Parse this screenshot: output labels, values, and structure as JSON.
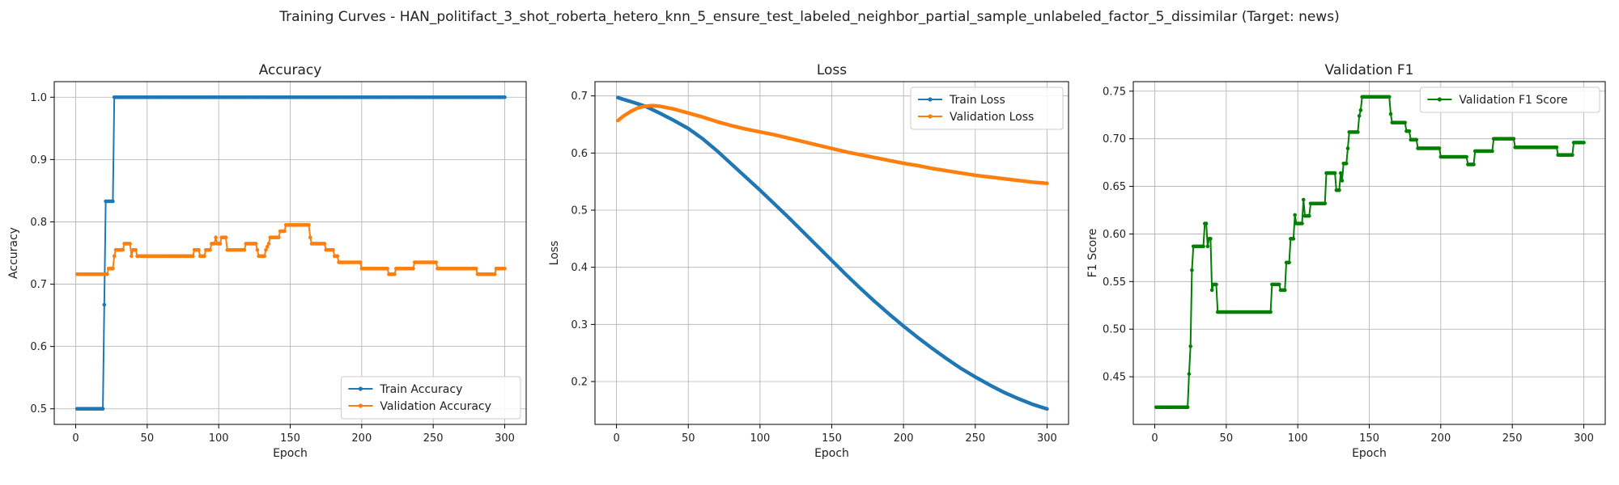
{
  "suptitle": "Training Curves - HAN_politifact_3_shot_roberta_hetero_knn_5_ensure_test_labeled_neighbor_partial_sample_unlabeled_factor_5_dissimilar (Target: news)",
  "colors": {
    "blue": "#1f77b4",
    "orange": "#ff7f0e",
    "green": "#008000"
  },
  "chart_data": [
    {
      "type": "line",
      "title": "Accuracy",
      "xlabel": "Epoch",
      "ylabel": "Accuracy",
      "xlim": [
        -15,
        315
      ],
      "ylim": [
        0.475,
        1.025
      ],
      "xticks": [
        0,
        50,
        100,
        150,
        200,
        250,
        300
      ],
      "yticks": [
        0.5,
        0.6,
        0.7,
        0.8,
        0.9,
        1.0
      ],
      "ytick_labels": [
        "0.5",
        "0.6",
        "0.7",
        "0.8",
        "0.9",
        "1.0"
      ],
      "grid": true,
      "legend_position": "lower-right",
      "series": [
        {
          "name": "Train Accuracy",
          "color": "#1f77b4",
          "points": [
            [
              1,
              0.5
            ],
            [
              19,
              0.5
            ],
            [
              20,
              0.667
            ],
            [
              21,
              0.833
            ],
            [
              26,
              0.833
            ],
            [
              27,
              1.0
            ],
            [
              300,
              1.0
            ]
          ]
        },
        {
          "name": "Validation Accuracy",
          "color": "#ff7f0e",
          "points": [
            [
              1,
              0.716
            ],
            [
              22,
              0.716
            ],
            [
              23,
              0.725
            ],
            [
              26,
              0.725
            ],
            [
              27,
              0.745
            ],
            [
              28,
              0.755
            ],
            [
              33,
              0.755
            ],
            [
              34,
              0.765
            ],
            [
              38,
              0.765
            ],
            [
              39,
              0.745
            ],
            [
              40,
              0.755
            ],
            [
              42,
              0.755
            ],
            [
              43,
              0.745
            ],
            [
              82,
              0.745
            ],
            [
              83,
              0.755
            ],
            [
              86,
              0.755
            ],
            [
              87,
              0.745
            ],
            [
              90,
              0.745
            ],
            [
              91,
              0.755
            ],
            [
              94,
              0.755
            ],
            [
              95,
              0.765
            ],
            [
              97,
              0.765
            ],
            [
              98,
              0.775
            ],
            [
              99,
              0.765
            ],
            [
              101,
              0.765
            ],
            [
              102,
              0.775
            ],
            [
              105,
              0.775
            ],
            [
              106,
              0.755
            ],
            [
              118,
              0.755
            ],
            [
              119,
              0.765
            ],
            [
              126,
              0.765
            ],
            [
              127,
              0.755
            ],
            [
              128,
              0.745
            ],
            [
              132,
              0.745
            ],
            [
              133,
              0.755
            ],
            [
              135,
              0.765
            ],
            [
              136,
              0.775
            ],
            [
              142,
              0.775
            ],
            [
              143,
              0.785
            ],
            [
              146,
              0.785
            ],
            [
              147,
              0.795
            ],
            [
              163,
              0.795
            ],
            [
              164,
              0.775
            ],
            [
              165,
              0.765
            ],
            [
              174,
              0.765
            ],
            [
              175,
              0.755
            ],
            [
              180,
              0.755
            ],
            [
              181,
              0.745
            ],
            [
              183,
              0.745
            ],
            [
              184,
              0.735
            ],
            [
              199,
              0.735
            ],
            [
              200,
              0.725
            ],
            [
              218,
              0.725
            ],
            [
              219,
              0.716
            ],
            [
              223,
              0.716
            ],
            [
              224,
              0.725
            ],
            [
              236,
              0.725
            ],
            [
              237,
              0.735
            ],
            [
              252,
              0.735
            ],
            [
              253,
              0.725
            ],
            [
              280,
              0.725
            ],
            [
              281,
              0.716
            ],
            [
              293,
              0.716
            ],
            [
              294,
              0.725
            ],
            [
              300,
              0.725
            ]
          ]
        }
      ]
    },
    {
      "type": "line",
      "title": "Loss",
      "xlabel": "Epoch",
      "ylabel": "Loss",
      "xlim": [
        -15,
        315
      ],
      "ylim": [
        0.125,
        0.725
      ],
      "xticks": [
        0,
        50,
        100,
        150,
        200,
        250,
        300
      ],
      "yticks": [
        0.2,
        0.3,
        0.4,
        0.5,
        0.6,
        0.7
      ],
      "ytick_labels": [
        "0.2",
        "0.3",
        "0.4",
        "0.5",
        "0.6",
        "0.7"
      ],
      "grid": true,
      "legend_position": "upper-right",
      "series": [
        {
          "name": "Train Loss",
          "color": "#1f77b4",
          "points": [
            [
              1,
              0.697
            ],
            [
              10,
              0.69
            ],
            [
              20,
              0.682
            ],
            [
              30,
              0.67
            ],
            [
              40,
              0.657
            ],
            [
              50,
              0.643
            ],
            [
              60,
              0.625
            ],
            [
              70,
              0.604
            ],
            [
              80,
              0.581
            ],
            [
              90,
              0.558
            ],
            [
              100,
              0.535
            ],
            [
              110,
              0.511
            ],
            [
              120,
              0.487
            ],
            [
              130,
              0.462
            ],
            [
              140,
              0.437
            ],
            [
              150,
              0.412
            ],
            [
              160,
              0.387
            ],
            [
              170,
              0.363
            ],
            [
              180,
              0.34
            ],
            [
              190,
              0.318
            ],
            [
              200,
              0.297
            ],
            [
              210,
              0.277
            ],
            [
              220,
              0.258
            ],
            [
              230,
              0.24
            ],
            [
              240,
              0.223
            ],
            [
              250,
              0.208
            ],
            [
              260,
              0.194
            ],
            [
              270,
              0.181
            ],
            [
              280,
              0.17
            ],
            [
              290,
              0.16
            ],
            [
              300,
              0.152
            ]
          ]
        },
        {
          "name": "Validation Loss",
          "color": "#ff7f0e",
          "points": [
            [
              1,
              0.657
            ],
            [
              5,
              0.665
            ],
            [
              10,
              0.673
            ],
            [
              15,
              0.679
            ],
            [
              20,
              0.682
            ],
            [
              25,
              0.683
            ],
            [
              30,
              0.682
            ],
            [
              40,
              0.677
            ],
            [
              50,
              0.67
            ],
            [
              60,
              0.663
            ],
            [
              70,
              0.655
            ],
            [
              80,
              0.648
            ],
            [
              90,
              0.642
            ],
            [
              100,
              0.637
            ],
            [
              110,
              0.632
            ],
            [
              120,
              0.626
            ],
            [
              130,
              0.62
            ],
            [
              140,
              0.614
            ],
            [
              150,
              0.608
            ],
            [
              160,
              0.602
            ],
            [
              170,
              0.597
            ],
            [
              180,
              0.592
            ],
            [
              190,
              0.587
            ],
            [
              200,
              0.582
            ],
            [
              210,
              0.578
            ],
            [
              220,
              0.573
            ],
            [
              230,
              0.569
            ],
            [
              240,
              0.565
            ],
            [
              250,
              0.561
            ],
            [
              260,
              0.558
            ],
            [
              270,
              0.555
            ],
            [
              280,
              0.552
            ],
            [
              290,
              0.549
            ],
            [
              300,
              0.547
            ]
          ]
        }
      ]
    },
    {
      "type": "line",
      "title": "Validation F1",
      "xlabel": "Epoch",
      "ylabel": "F1 Score",
      "xlim": [
        -15,
        315
      ],
      "ylim": [
        0.4,
        0.76
      ],
      "xticks": [
        0,
        50,
        100,
        150,
        200,
        250,
        300
      ],
      "yticks": [
        0.45,
        0.5,
        0.55,
        0.6,
        0.65,
        0.7,
        0.75
      ],
      "ytick_labels": [
        "0.45",
        "0.50",
        "0.55",
        "0.60",
        "0.65",
        "0.70",
        "0.75"
      ],
      "grid": true,
      "legend_position": "upper-right",
      "series": [
        {
          "name": "Validation F1 Score",
          "color": "#008000",
          "points": [
            [
              1,
              0.418
            ],
            [
              23,
              0.418
            ],
            [
              24,
              0.453
            ],
            [
              25,
              0.482
            ],
            [
              26,
              0.562
            ],
            [
              27,
              0.587
            ],
            [
              34,
              0.587
            ],
            [
              35,
              0.611
            ],
            [
              36,
              0.611
            ],
            [
              37,
              0.587
            ],
            [
              38,
              0.595
            ],
            [
              39,
              0.595
            ],
            [
              40,
              0.541
            ],
            [
              41,
              0.547
            ],
            [
              43,
              0.547
            ],
            [
              44,
              0.518
            ],
            [
              81,
              0.518
            ],
            [
              82,
              0.547
            ],
            [
              87,
              0.547
            ],
            [
              88,
              0.541
            ],
            [
              91,
              0.541
            ],
            [
              92,
              0.57
            ],
            [
              94,
              0.57
            ],
            [
              95,
              0.595
            ],
            [
              97,
              0.595
            ],
            [
              98,
              0.62
            ],
            [
              99,
              0.611
            ],
            [
              103,
              0.611
            ],
            [
              104,
              0.636
            ],
            [
              105,
              0.619
            ],
            [
              108,
              0.619
            ],
            [
              109,
              0.632
            ],
            [
              119,
              0.632
            ],
            [
              120,
              0.664
            ],
            [
              126,
              0.664
            ],
            [
              127,
              0.646
            ],
            [
              129,
              0.646
            ],
            [
              130,
              0.664
            ],
            [
              131,
              0.656
            ],
            [
              132,
              0.674
            ],
            [
              134,
              0.674
            ],
            [
              135,
              0.69
            ],
            [
              136,
              0.707
            ],
            [
              142,
              0.707
            ],
            [
              143,
              0.724
            ],
            [
              144,
              0.73
            ],
            [
              145,
              0.744
            ],
            [
              164,
              0.744
            ],
            [
              165,
              0.726
            ],
            [
              166,
              0.717
            ],
            [
              175,
              0.717
            ],
            [
              176,
              0.708
            ],
            [
              178,
              0.708
            ],
            [
              179,
              0.699
            ],
            [
              183,
              0.699
            ],
            [
              184,
              0.69
            ],
            [
              199,
              0.69
            ],
            [
              200,
              0.681
            ],
            [
              218,
              0.681
            ],
            [
              219,
              0.673
            ],
            [
              223,
              0.673
            ],
            [
              224,
              0.687
            ],
            [
              236,
              0.687
            ],
            [
              237,
              0.7
            ],
            [
              251,
              0.7
            ],
            [
              252,
              0.691
            ],
            [
              281,
              0.691
            ],
            [
              282,
              0.683
            ],
            [
              292,
              0.683
            ],
            [
              293,
              0.696
            ],
            [
              300,
              0.696
            ]
          ]
        }
      ]
    }
  ]
}
